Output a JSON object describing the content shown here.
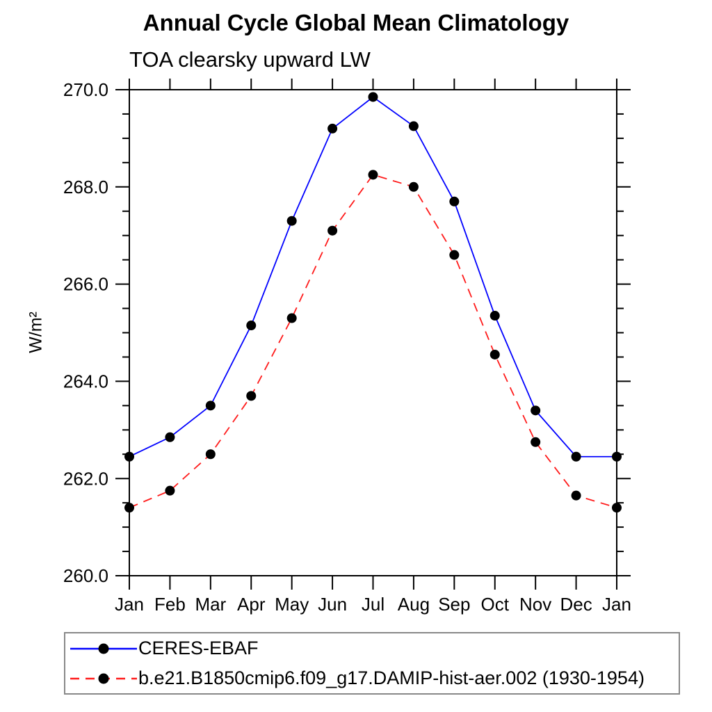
{
  "chart_data": {
    "type": "line",
    "title": "Annual Cycle Global Mean Climatology",
    "subtitle": "TOA clearsky upward LW",
    "ylabel": "W/m²",
    "categories": [
      "Jan",
      "Feb",
      "Mar",
      "Apr",
      "May",
      "Jun",
      "Jul",
      "Aug",
      "Sep",
      "Oct",
      "Nov",
      "Dec",
      "Jan"
    ],
    "series": [
      {
        "name": "CERES-EBAF",
        "line_color": "#0000ff",
        "line_style": "solid",
        "marker": "filled-circle",
        "marker_color": "#000000",
        "values": [
          262.45,
          262.85,
          263.5,
          265.15,
          267.3,
          269.2,
          269.85,
          269.25,
          267.7,
          265.35,
          263.4,
          262.45,
          262.45
        ]
      },
      {
        "name": "b.e21.B1850cmip6.f09_g17.DAMIP-hist-aer.002 (1930-1954)",
        "line_color": "#ff1a1a",
        "line_style": "dashed",
        "marker": "filled-circle",
        "marker_color": "#000000",
        "values": [
          261.4,
          261.75,
          262.5,
          263.7,
          265.3,
          267.1,
          268.25,
          268.0,
          266.6,
          264.55,
          262.75,
          261.65,
          261.4
        ]
      }
    ],
    "ylim": [
      260.0,
      270.0
    ],
    "ytick_interval": 2.0,
    "yminor_interval": 0.5,
    "ytick_labels": [
      "260.0",
      "262.0",
      "264.0",
      "266.0",
      "268.0",
      "270.0"
    ],
    "grid": false,
    "axis_color": "#000000",
    "legend_position": "bottom-left",
    "legend_border_color": "#888888"
  }
}
